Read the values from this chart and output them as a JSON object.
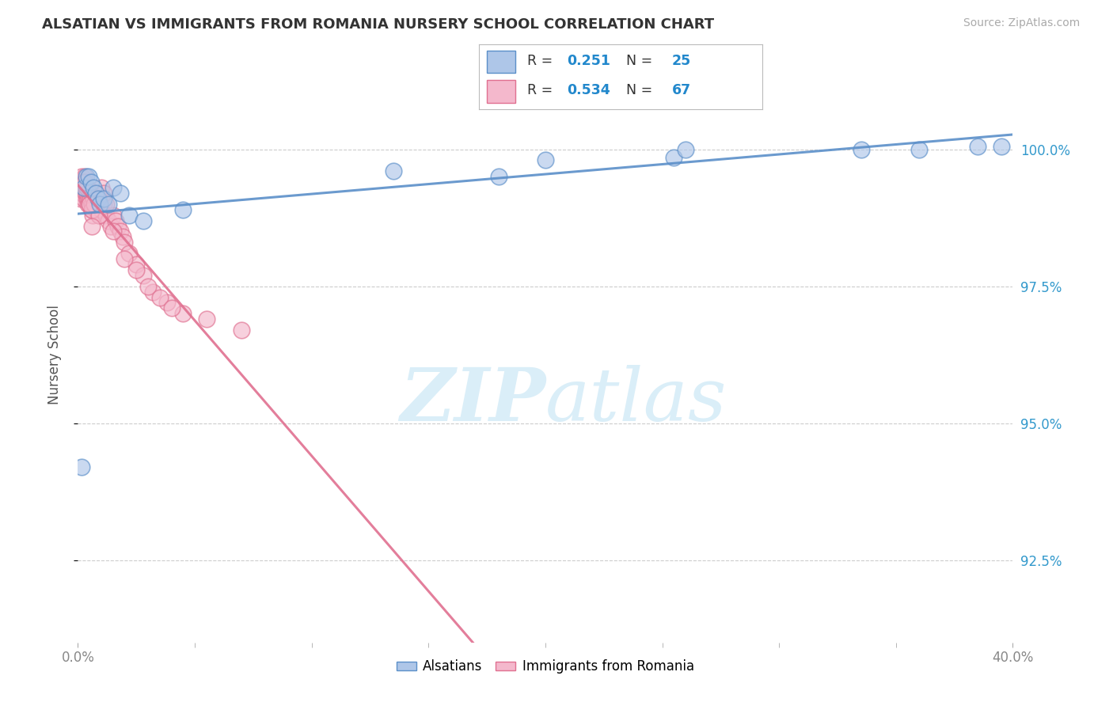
{
  "title": "ALSATIAN VS IMMIGRANTS FROM ROMANIA NURSERY SCHOOL CORRELATION CHART",
  "source": "Source: ZipAtlas.com",
  "ylabel": "Nursery School",
  "ytick_values": [
    92.5,
    95.0,
    97.5,
    100.0
  ],
  "xlim": [
    0.0,
    40.0
  ],
  "ylim": [
    91.0,
    101.5
  ],
  "legend_blue_label": "Alsatians",
  "legend_pink_label": "Immigrants from Romania",
  "R_blue": "0.251",
  "N_blue": "25",
  "R_pink": "0.534",
  "N_pink": "67",
  "blue_fill": "#aec6e8",
  "pink_fill": "#f4b8cc",
  "blue_edge": "#5b8fc9",
  "pink_edge": "#e07090",
  "blue_line": "#5b8fc9",
  "pink_line": "#e07090",
  "background_color": "#ffffff",
  "watermark_zip": "ZIP",
  "watermark_atlas": "atlas",
  "watermark_color": "#daeef8",
  "grid_color": "#cccccc",
  "right_tick_color": "#3399cc",
  "title_color": "#333333",
  "source_color": "#aaaaaa",
  "ylabel_color": "#555555",
  "xtick_color": "#888888",
  "blue_x": [
    0.15,
    0.25,
    0.35,
    0.45,
    0.55,
    0.65,
    0.75,
    0.85,
    0.95,
    1.1,
    1.3,
    1.5,
    1.8,
    2.2,
    2.8,
    4.5,
    13.5,
    18.0,
    20.0,
    25.5,
    26.0,
    33.5,
    36.0,
    38.5,
    39.5
  ],
  "blue_y": [
    94.2,
    99.3,
    99.5,
    99.5,
    99.4,
    99.3,
    99.2,
    99.1,
    99.0,
    99.1,
    99.0,
    99.3,
    99.2,
    98.8,
    98.7,
    98.9,
    99.6,
    99.5,
    99.8,
    99.85,
    100.0,
    100.0,
    100.0,
    100.05,
    100.05
  ],
  "pink_x": [
    0.05,
    0.08,
    0.1,
    0.12,
    0.15,
    0.18,
    0.2,
    0.23,
    0.25,
    0.28,
    0.3,
    0.33,
    0.35,
    0.38,
    0.4,
    0.43,
    0.45,
    0.48,
    0.5,
    0.53,
    0.55,
    0.58,
    0.6,
    0.63,
    0.65,
    0.7,
    0.75,
    0.8,
    0.85,
    0.9,
    0.95,
    1.0,
    1.1,
    1.2,
    1.3,
    1.4,
    1.5,
    1.6,
    1.7,
    1.8,
    1.9,
    2.0,
    2.2,
    2.5,
    2.8,
    3.2,
    3.8,
    4.5,
    5.5,
    7.0,
    1.0,
    1.5,
    1.2,
    0.8,
    0.6,
    0.9,
    1.1,
    0.7,
    0.4,
    0.3,
    0.6,
    0.5,
    2.0,
    2.5,
    3.0,
    3.5,
    4.0
  ],
  "pink_y": [
    99.3,
    99.2,
    99.4,
    99.1,
    99.5,
    99.3,
    99.2,
    99.4,
    99.1,
    99.3,
    99.5,
    99.2,
    99.3,
    99.1,
    99.2,
    99.0,
    99.1,
    99.2,
    99.0,
    99.1,
    99.2,
    98.9,
    99.0,
    98.8,
    99.1,
    99.0,
    98.9,
    99.2,
    99.0,
    98.8,
    99.1,
    98.9,
    99.0,
    98.8,
    98.7,
    98.6,
    98.8,
    98.7,
    98.6,
    98.5,
    98.4,
    98.3,
    98.1,
    97.9,
    97.7,
    97.4,
    97.2,
    97.0,
    96.9,
    96.7,
    99.3,
    98.5,
    99.0,
    99.1,
    98.9,
    98.8,
    99.2,
    99.0,
    99.3,
    99.4,
    98.6,
    99.0,
    98.0,
    97.8,
    97.5,
    97.3,
    97.1
  ]
}
